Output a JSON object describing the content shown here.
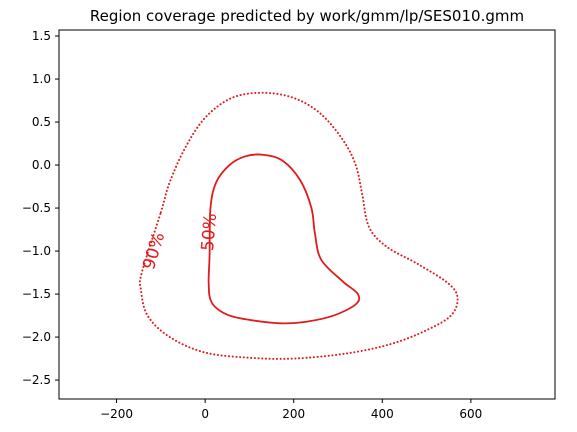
{
  "chart_data": {
    "type": "line",
    "title": "Region coverage predicted by work/gmm/lp/SES010.gmm",
    "xlabel": "",
    "ylabel": "",
    "xlim": [
      -330,
      790
    ],
    "ylim": [
      -2.72,
      1.57
    ],
    "x_ticks": [
      -200,
      0,
      200,
      400,
      600
    ],
    "x_tick_labels": [
      "−200",
      "0",
      "200",
      "400",
      "600"
    ],
    "y_ticks": [
      1.5,
      1.0,
      0.5,
      0.0,
      -0.5,
      -1.0,
      -1.5,
      -2.0,
      -2.5
    ],
    "y_tick_labels": [
      "1.5",
      "1.0",
      "0.5",
      "0.0",
      "−0.5",
      "−1.0",
      "−1.5",
      "−2.0",
      "−2.5"
    ],
    "grid": false,
    "legend": "none",
    "color": "#e31a1c",
    "series": [
      {
        "name": "90%",
        "style": "dotted",
        "label_at": [
          -115,
          -1.0
        ],
        "label_rotation": -73,
        "points": [
          [
            -100,
            -0.55
          ],
          [
            -80,
            -0.2
          ],
          [
            -45,
            0.2
          ],
          [
            0,
            0.55
          ],
          [
            60,
            0.78
          ],
          [
            130,
            0.84
          ],
          [
            200,
            0.78
          ],
          [
            260,
            0.6
          ],
          [
            310,
            0.3
          ],
          [
            340,
            0.0
          ],
          [
            355,
            -0.35
          ],
          [
            370,
            -0.72
          ],
          [
            410,
            -0.95
          ],
          [
            480,
            -1.15
          ],
          [
            550,
            -1.38
          ],
          [
            570,
            -1.55
          ],
          [
            555,
            -1.75
          ],
          [
            500,
            -1.92
          ],
          [
            420,
            -2.08
          ],
          [
            320,
            -2.19
          ],
          [
            200,
            -2.25
          ],
          [
            100,
            -2.24
          ],
          [
            0,
            -2.18
          ],
          [
            -80,
            -2.0
          ],
          [
            -130,
            -1.75
          ],
          [
            -145,
            -1.45
          ],
          [
            -143,
            -1.25
          ]
        ]
      },
      {
        "name": "50%",
        "style": "solid",
        "label_at": [
          10,
          -0.78
        ],
        "label_rotation": -85,
        "points": [
          [
            12,
            -0.5
          ],
          [
            25,
            -0.2
          ],
          [
            55,
            0.0
          ],
          [
            90,
            0.1
          ],
          [
            130,
            0.12
          ],
          [
            175,
            0.05
          ],
          [
            215,
            -0.18
          ],
          [
            240,
            -0.5
          ],
          [
            248,
            -0.8
          ],
          [
            262,
            -1.1
          ],
          [
            310,
            -1.35
          ],
          [
            345,
            -1.5
          ],
          [
            340,
            -1.62
          ],
          [
            290,
            -1.75
          ],
          [
            230,
            -1.82
          ],
          [
            170,
            -1.84
          ],
          [
            100,
            -1.8
          ],
          [
            50,
            -1.74
          ],
          [
            15,
            -1.6
          ],
          [
            8,
            -1.38
          ],
          [
            10,
            -1.05
          ]
        ]
      }
    ]
  }
}
